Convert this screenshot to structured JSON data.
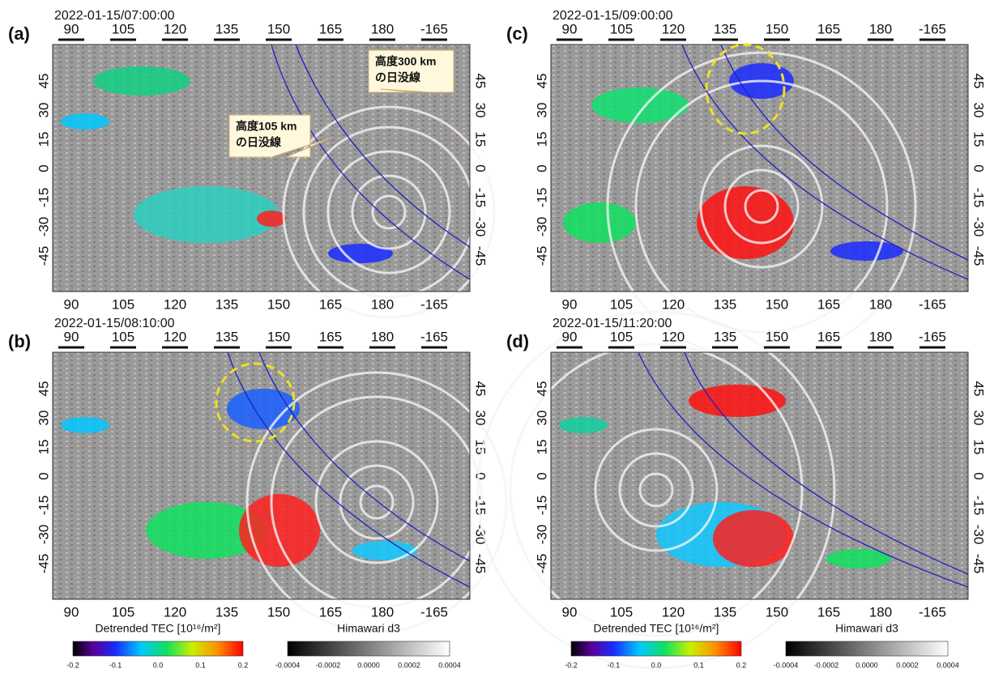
{
  "axes": {
    "x_ticks": [
      "90",
      "105",
      "120",
      "135",
      "150",
      "165",
      "180",
      "-165"
    ],
    "y_ticks": [
      "45",
      "30",
      "15",
      "0",
      "-15",
      "-30",
      "-45"
    ]
  },
  "panels": [
    {
      "label": "(a)",
      "time": "2022-01-15/07:00:00"
    },
    {
      "label": "(b)",
      "time": "2022-01-15/08:10:00"
    },
    {
      "label": "(c)",
      "time": "2022-01-15/09:00:00"
    },
    {
      "label": "(d)",
      "time": "2022-01-15/11:20:00"
    }
  ],
  "annotations": [
    {
      "lines": [
        "高度300 km",
        "の日没線"
      ]
    },
    {
      "lines": [
        "高度105 km",
        "の日没線"
      ]
    }
  ],
  "colorbars": [
    {
      "title": "Detrended TEC [10¹⁶/m²]",
      "ticks": [
        "-0.2",
        "-0.1",
        "0.0",
        "0.1",
        "0.2"
      ]
    },
    {
      "title": "Himawari d3",
      "ticks": [
        "-0.0004",
        "-0.0002",
        "0.0000",
        "0.0002",
        "0.0004"
      ]
    }
  ]
}
